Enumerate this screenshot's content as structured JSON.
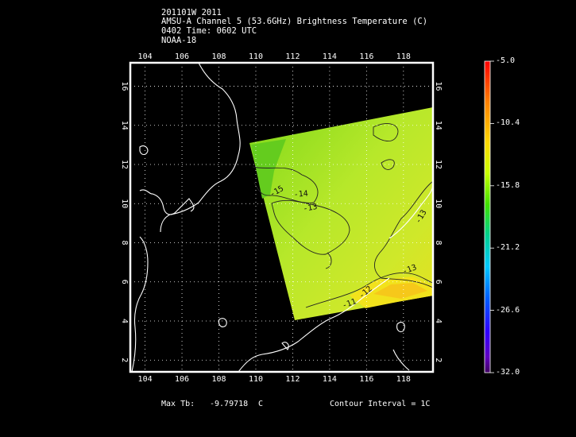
{
  "header": {
    "line1": "201101W 2011",
    "line2": "AMSU-A Channel 5 (53.6GHz) Brightness Temperature (C)",
    "line3": "0402 Time: 0602 UTC",
    "line4": "NOAA-18"
  },
  "map": {
    "lon_ticks": [
      "104",
      "106",
      "108",
      "110",
      "112",
      "114",
      "116",
      "118"
    ],
    "lat_ticks": [
      "2",
      "4",
      "6",
      "8",
      "10",
      "12",
      "14",
      "16"
    ],
    "lon_range": [
      103.2,
      119.6
    ],
    "lat_range": [
      1.4,
      17.2
    ],
    "grid": true,
    "contour_labels": [
      "-15",
      "-14",
      "-13",
      "-13",
      "-13",
      "-12",
      "-11"
    ]
  },
  "colorbar": {
    "labels": [
      "-5.0",
      "-10.4",
      "-15.8",
      "-21.2",
      "-26.6",
      "-32.0"
    ],
    "colors": [
      "#ff0000",
      "#ffb000",
      "#ffff00",
      "#80ff00",
      "#00e000",
      "#00d0d0",
      "#0080ff",
      "#4000ff",
      "#6000a0"
    ]
  },
  "footer": {
    "max_label": "Max Tb:",
    "max_value": "-9.79718",
    "max_unit": "C",
    "contour": "Contour Interval = 1C"
  }
}
